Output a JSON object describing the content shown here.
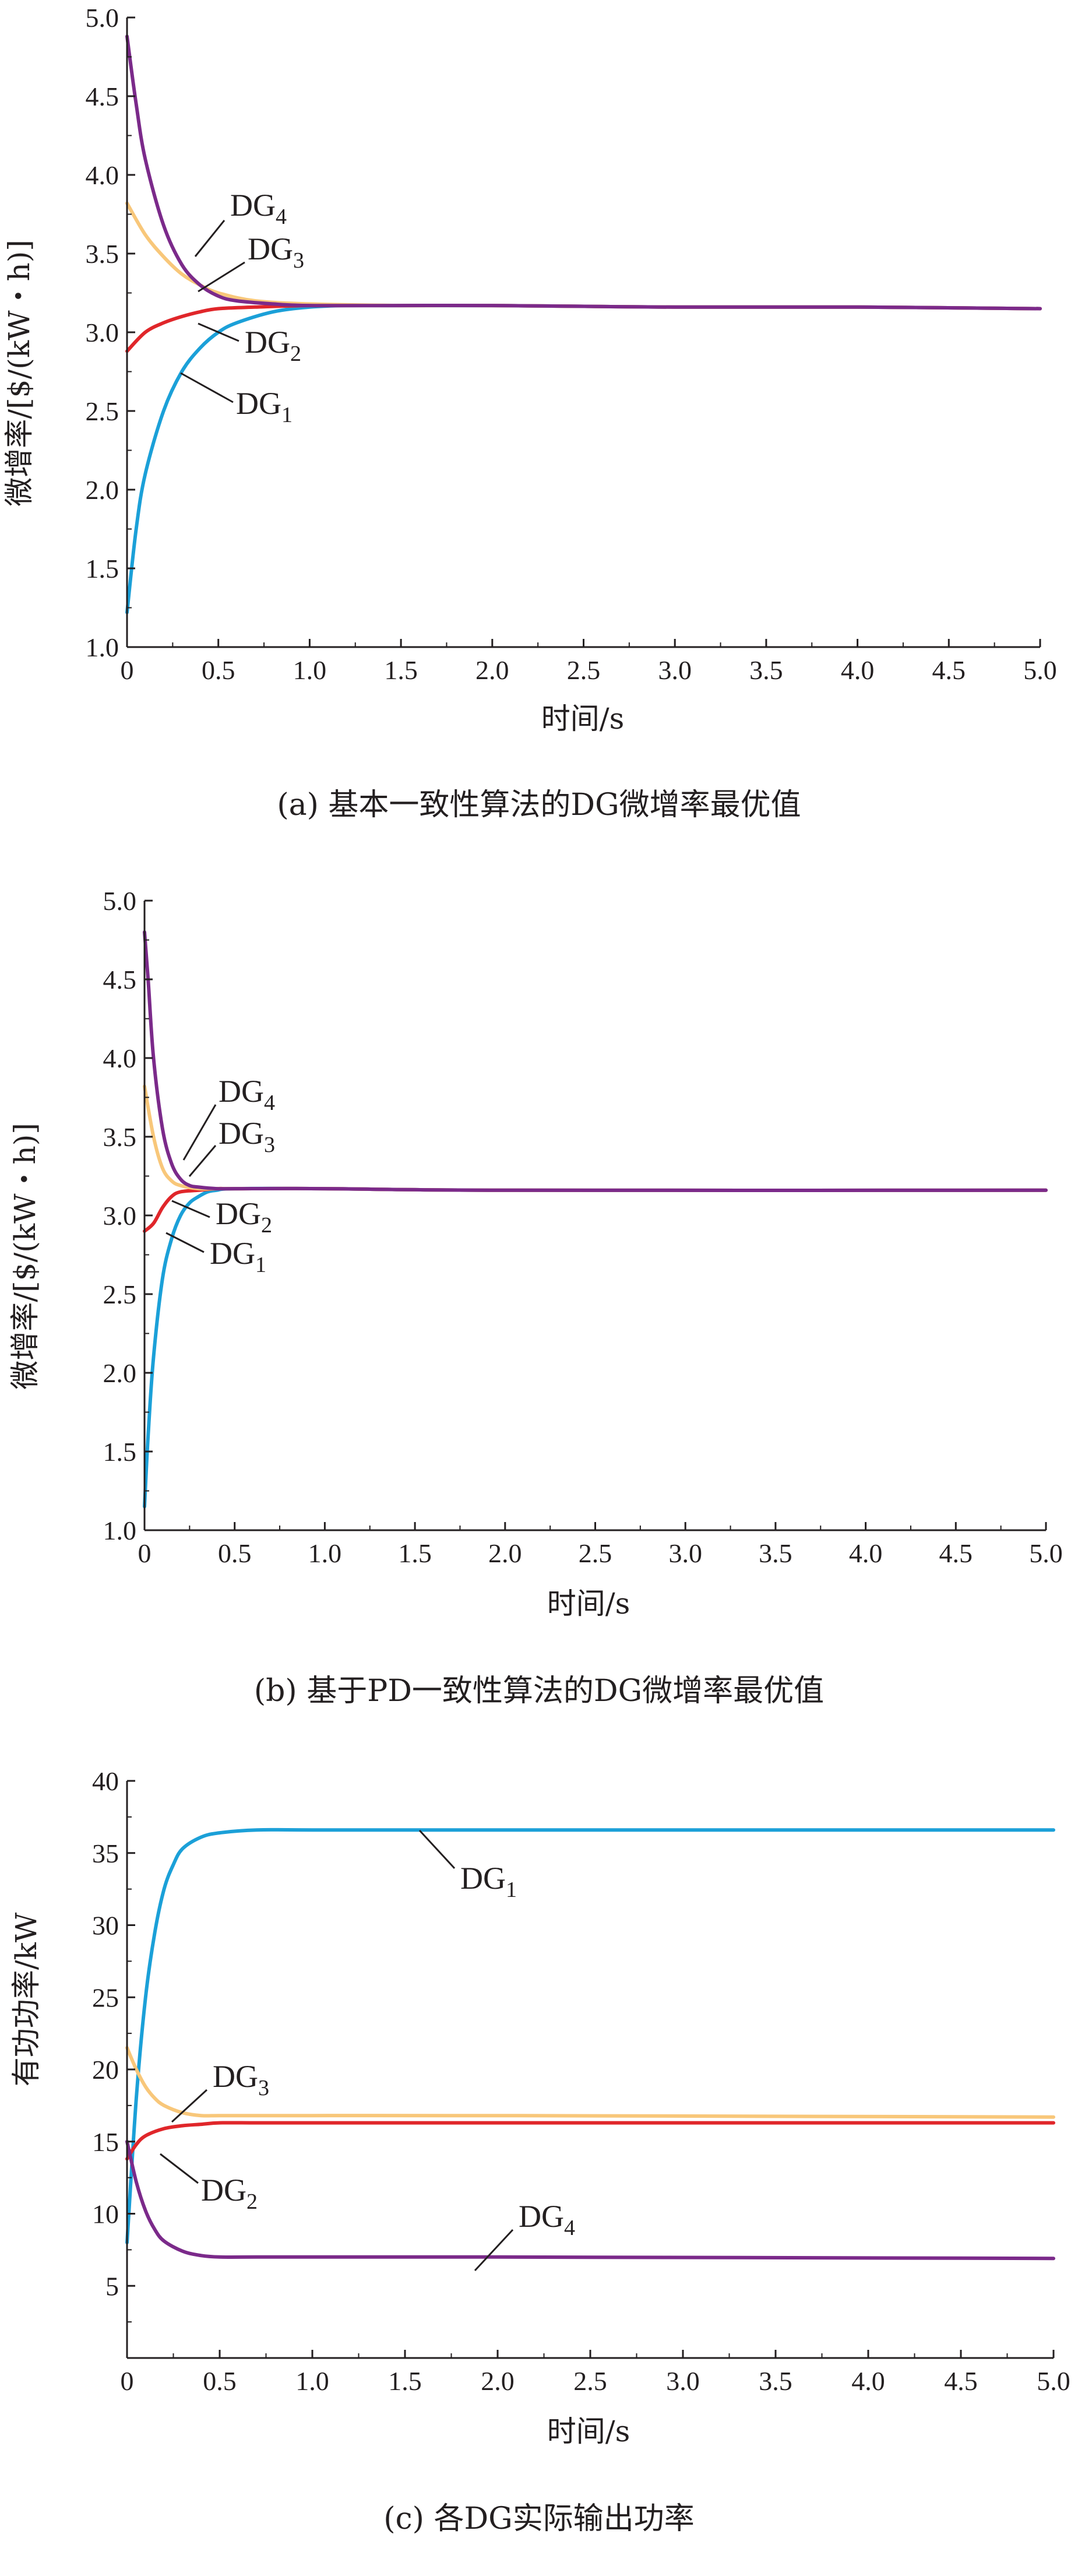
{
  "colors": {
    "DG1": "#1ba0d8",
    "DG2": "#e0262a",
    "DG3": "#f8c77a",
    "DG4": "#7b2a8a",
    "axis": "#231f20"
  },
  "chart_data": [
    {
      "type": "line",
      "caption": "(a) 基本一致性算法的DG微增率最优值",
      "xlabel": "时间/s",
      "ylabel": "微增率/[$/(kW・h)]",
      "xlim": [
        0,
        5.0
      ],
      "ylim": [
        1.0,
        5.0
      ],
      "xticks": [
        "0",
        "0.5",
        "1.0",
        "1.5",
        "2.0",
        "2.5",
        "3.0",
        "3.5",
        "4.0",
        "4.5",
        "5.0"
      ],
      "yticks": [
        "1.0",
        "1.5",
        "2.0",
        "2.5",
        "3.0",
        "3.5",
        "4.0",
        "4.5",
        "5.0"
      ],
      "final": 3.15,
      "series": [
        {
          "name": "DG1",
          "color": "#1ba0d8",
          "x": [
            0,
            0.05,
            0.1,
            0.2,
            0.3,
            0.4,
            0.5,
            0.6,
            0.8,
            1.0,
            1.2,
            1.5,
            2.0,
            3.0,
            4.0,
            5.0
          ],
          "y": [
            1.22,
            1.75,
            2.1,
            2.5,
            2.75,
            2.9,
            3.0,
            3.06,
            3.13,
            3.16,
            3.17,
            3.17,
            3.17,
            3.16,
            3.16,
            3.15
          ]
        },
        {
          "name": "DG2",
          "color": "#e0262a",
          "x": [
            0,
            0.1,
            0.2,
            0.3,
            0.4,
            0.5,
            0.7,
            1.0,
            1.5,
            2.0,
            3.0,
            4.0,
            5.0
          ],
          "y": [
            2.88,
            3.0,
            3.06,
            3.1,
            3.13,
            3.15,
            3.16,
            3.17,
            3.17,
            3.17,
            3.16,
            3.16,
            3.15
          ]
        },
        {
          "name": "DG3",
          "color": "#f8c77a",
          "x": [
            0,
            0.1,
            0.2,
            0.3,
            0.4,
            0.5,
            0.7,
            1.0,
            1.5,
            2.0,
            3.0,
            4.0,
            5.0
          ],
          "y": [
            3.82,
            3.62,
            3.48,
            3.37,
            3.3,
            3.25,
            3.2,
            3.18,
            3.17,
            3.17,
            3.16,
            3.16,
            3.15
          ]
        },
        {
          "name": "DG4",
          "color": "#7b2a8a",
          "x": [
            0,
            0.05,
            0.1,
            0.2,
            0.3,
            0.4,
            0.5,
            0.6,
            0.8,
            1.0,
            1.5,
            2.0,
            3.0,
            4.0,
            5.0
          ],
          "y": [
            4.88,
            4.45,
            4.1,
            3.68,
            3.43,
            3.3,
            3.23,
            3.2,
            3.18,
            3.17,
            3.17,
            3.17,
            3.16,
            3.16,
            3.15
          ]
        }
      ],
      "labels": [
        "DG4",
        "DG3",
        "DG2",
        "DG1"
      ]
    },
    {
      "type": "line",
      "caption": "(b) 基于PD一致性算法的DG微增率最优值",
      "xlabel": "时间/s",
      "ylabel": "微增率/[$/(kW・h)]",
      "xlim": [
        0,
        5.0
      ],
      "ylim": [
        1.0,
        5.0
      ],
      "xticks": [
        "0",
        "0.5",
        "1.0",
        "1.5",
        "2.0",
        "2.5",
        "3.0",
        "3.5",
        "4.0",
        "4.5",
        "5.0"
      ],
      "yticks": [
        "1.0",
        "1.5",
        "2.0",
        "2.5",
        "3.0",
        "3.5",
        "4.0",
        "4.5",
        "5.0"
      ],
      "final": 3.16,
      "series": [
        {
          "name": "DG1",
          "color": "#1ba0d8",
          "x": [
            0,
            0.02,
            0.05,
            0.1,
            0.15,
            0.2,
            0.25,
            0.3,
            0.35,
            0.4,
            0.5,
            1.0,
            2.0,
            5.0
          ],
          "y": [
            1.15,
            1.6,
            2.1,
            2.6,
            2.85,
            3.0,
            3.08,
            3.12,
            3.15,
            3.16,
            3.17,
            3.17,
            3.16,
            3.16
          ]
        },
        {
          "name": "DG2",
          "color": "#e0262a",
          "x": [
            0,
            0.05,
            0.1,
            0.15,
            0.2,
            0.3,
            0.4,
            0.5,
            1.0,
            2.0,
            5.0
          ],
          "y": [
            2.9,
            2.95,
            3.05,
            3.12,
            3.15,
            3.16,
            3.17,
            3.17,
            3.17,
            3.16,
            3.16
          ]
        },
        {
          "name": "DG3",
          "color": "#f8c77a",
          "x": [
            0,
            0.05,
            0.1,
            0.15,
            0.2,
            0.3,
            0.4,
            0.5,
            1.0,
            2.0,
            5.0
          ],
          "y": [
            3.82,
            3.5,
            3.3,
            3.22,
            3.19,
            3.17,
            3.17,
            3.17,
            3.17,
            3.16,
            3.16
          ]
        },
        {
          "name": "DG4",
          "color": "#7b2a8a",
          "x": [
            0,
            0.02,
            0.05,
            0.1,
            0.15,
            0.2,
            0.25,
            0.3,
            0.4,
            0.5,
            1.0,
            2.0,
            5.0
          ],
          "y": [
            4.8,
            4.5,
            4.0,
            3.55,
            3.33,
            3.23,
            3.19,
            3.18,
            3.17,
            3.17,
            3.17,
            3.16,
            3.16
          ]
        }
      ],
      "labels": [
        "DG4",
        "DG3",
        "DG2",
        "DG1"
      ]
    },
    {
      "type": "line",
      "caption": "(c) 各DG实际输出功率",
      "xlabel": "时间/s",
      "ylabel": "有功功率/kW",
      "xlim": [
        0,
        5.0
      ],
      "ylim": [
        0,
        40
      ],
      "xticks": [
        "0",
        "0.5",
        "1.0",
        "1.5",
        "2.0",
        "2.5",
        "3.0",
        "3.5",
        "4.0",
        "4.5",
        "5.0"
      ],
      "yticks": [
        "5",
        "10",
        "15",
        "20",
        "25",
        "30",
        "35",
        "40"
      ],
      "series": [
        {
          "name": "DG1",
          "color": "#1ba0d8",
          "x": [
            0,
            0.05,
            0.1,
            0.15,
            0.2,
            0.25,
            0.3,
            0.4,
            0.5,
            0.7,
            1.0,
            2.0,
            5.0
          ],
          "y": [
            8.0,
            18.0,
            25.0,
            29.5,
            32.5,
            34.2,
            35.3,
            36.1,
            36.4,
            36.6,
            36.6,
            36.6,
            36.6
          ]
        },
        {
          "name": "DG2",
          "color": "#e0262a",
          "x": [
            0,
            0.05,
            0.1,
            0.2,
            0.3,
            0.4,
            0.5,
            0.7,
            1.0,
            2.0,
            5.0
          ],
          "y": [
            13.8,
            14.8,
            15.4,
            15.9,
            16.1,
            16.2,
            16.3,
            16.3,
            16.3,
            16.3,
            16.3
          ]
        },
        {
          "name": "DG3",
          "color": "#f8c77a",
          "x": [
            0,
            0.05,
            0.1,
            0.15,
            0.2,
            0.3,
            0.4,
            0.5,
            0.7,
            1.0,
            2.0,
            5.0
          ],
          "y": [
            21.5,
            20.0,
            18.8,
            18.0,
            17.5,
            17.0,
            16.8,
            16.8,
            16.8,
            16.8,
            16.8,
            16.7
          ]
        },
        {
          "name": "DG4",
          "color": "#7b2a8a",
          "x": [
            0,
            0.05,
            0.1,
            0.15,
            0.2,
            0.3,
            0.4,
            0.5,
            0.7,
            1.0,
            2.0,
            5.0
          ],
          "y": [
            15.0,
            12.2,
            10.2,
            8.9,
            8.1,
            7.4,
            7.1,
            7.0,
            7.0,
            7.0,
            7.0,
            6.9
          ]
        }
      ],
      "labels": [
        "DG1",
        "DG3",
        "DG2",
        "DG4"
      ]
    }
  ]
}
